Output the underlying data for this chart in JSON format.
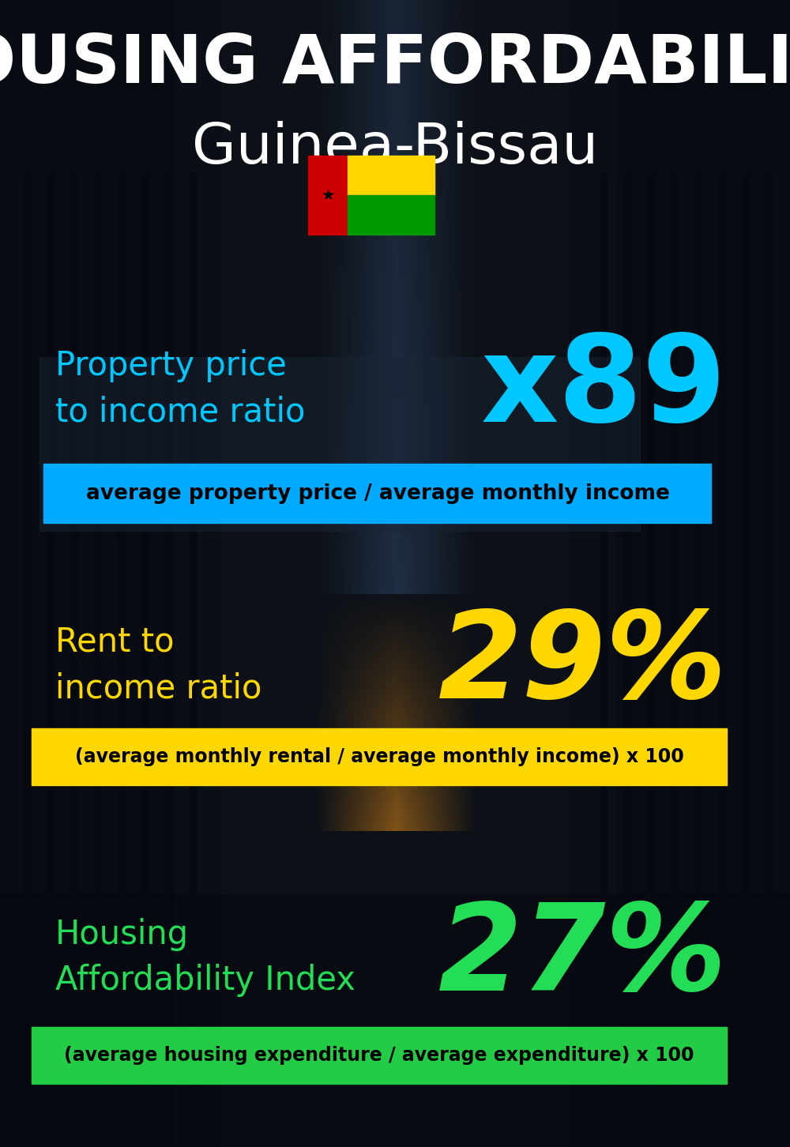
{
  "title_line1": "HOUSING AFFORDABILITY",
  "title_line2": "Guinea-Bissau",
  "bg_color": "#0d1117",
  "title1_color": "#ffffff",
  "title2_color": "#ffffff",
  "section1_label": "Property price\nto income ratio",
  "section1_value": "x89",
  "section1_label_color": "#00c8ff",
  "section1_value_color": "#00c8ff",
  "section1_banner_text": "average property price / average monthly income",
  "section1_banner_bg": "#00aaff",
  "section1_banner_text_color": "#000000",
  "section2_label": "Rent to\nincome ratio",
  "section2_value": "29%",
  "section2_label_color": "#ffd700",
  "section2_value_color": "#ffd700",
  "section2_banner_text": "(average monthly rental / average monthly income) x 100",
  "section2_banner_bg": "#ffd700",
  "section2_banner_text_color": "#000000",
  "section3_label": "Housing\nAffordability Index",
  "section3_value": "27%",
  "section3_label_color": "#22dd55",
  "section3_value_color": "#22dd55",
  "section3_banner_text": "(average housing expenditure / average expenditure) x 100",
  "section3_banner_bg": "#22cc44",
  "section3_banner_text_color": "#000000",
  "fig_width": 10.0,
  "fig_height": 14.52
}
